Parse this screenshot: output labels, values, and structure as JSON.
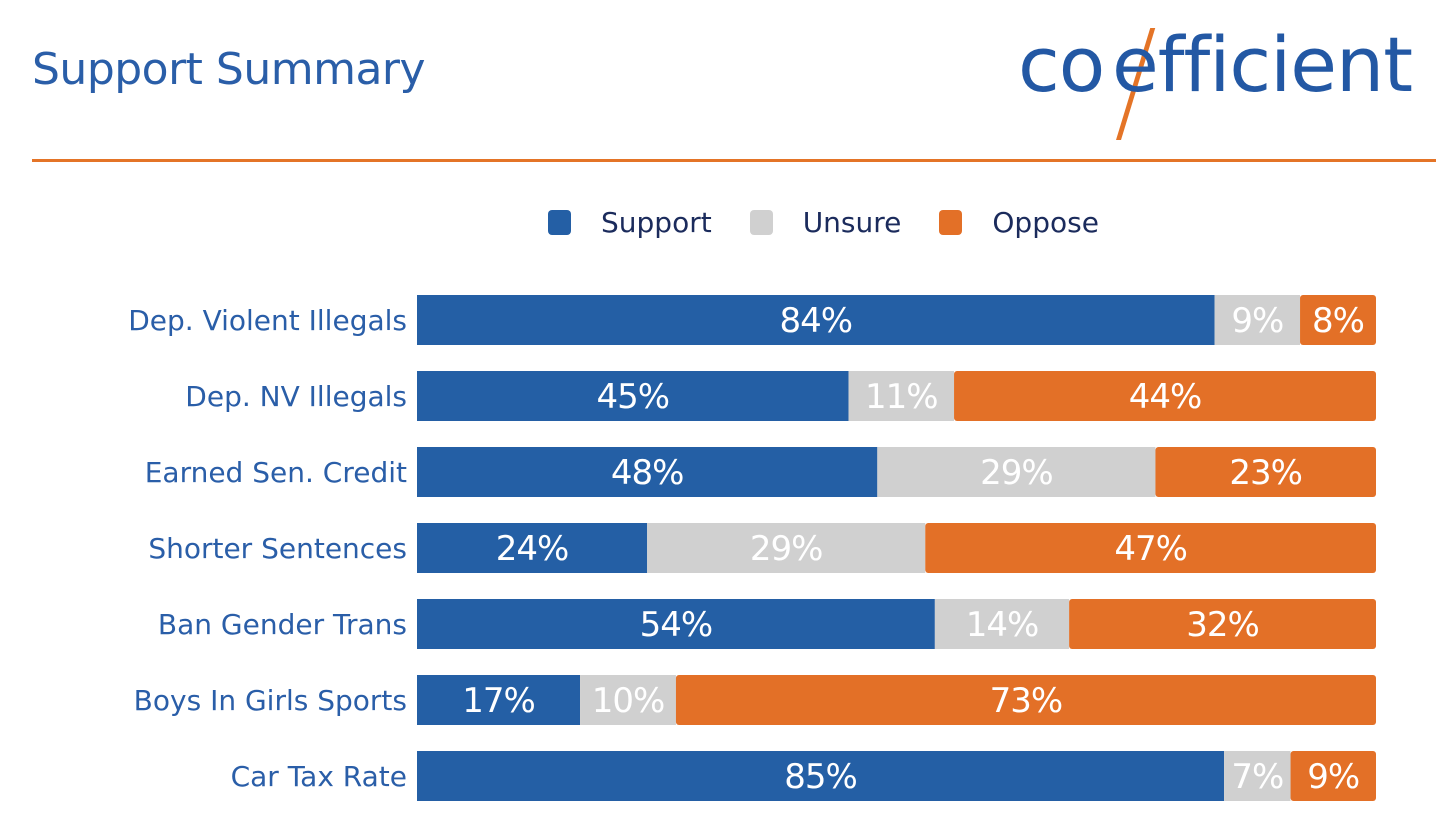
{
  "header": {
    "title": "Support Summary",
    "logo_text": "co/efficient",
    "logo_part1": "co",
    "logo_part2": "efficient"
  },
  "colors": {
    "support": "#245fa5",
    "unsure": "#d0d0d0",
    "oppose": "#e37027",
    "label": "#2a5ea8"
  },
  "chart_data": {
    "type": "bar",
    "orientation": "horizontal-stacked-100",
    "title": "Support Summary",
    "legend": [
      "Support",
      "Unsure",
      "Oppose"
    ],
    "legend_position": "top",
    "categories": [
      "Dep. Violent Illegals",
      "Dep. NV Illegals",
      "Earned Sen. Credit",
      "Shorter Sentences",
      "Ban Gender Trans",
      "Boys In Girls Sports",
      "Car Tax Rate"
    ],
    "series": [
      {
        "name": "Support",
        "values": [
          84,
          45,
          48,
          24,
          54,
          17,
          85
        ]
      },
      {
        "name": "Unsure",
        "values": [
          9,
          11,
          29,
          29,
          14,
          10,
          7
        ]
      },
      {
        "name": "Oppose",
        "values": [
          8,
          44,
          23,
          47,
          32,
          73,
          9
        ]
      }
    ],
    "value_format": "{v}%"
  }
}
